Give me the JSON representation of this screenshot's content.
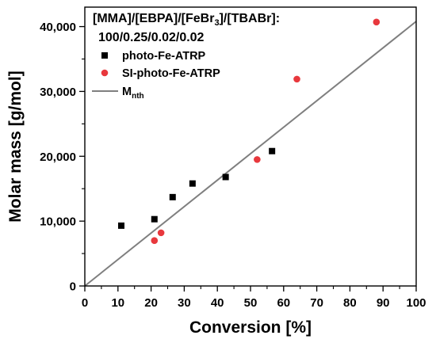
{
  "chart_data": {
    "type": "scatter",
    "xlabel": "Conversion [%]",
    "ylabel": "Molar mass [g/mol]",
    "xlim": [
      0,
      100
    ],
    "ylim": [
      0,
      43000
    ],
    "x_ticks": [
      0,
      10,
      20,
      30,
      40,
      50,
      60,
      70,
      80,
      90,
      100
    ],
    "x_tick_labels": [
      "0",
      "10",
      "20",
      "30",
      "40",
      "50",
      "60",
      "70",
      "80",
      "90",
      "100"
    ],
    "y_ticks": [
      0,
      10000,
      20000,
      30000,
      40000
    ],
    "y_tick_labels": [
      "0",
      "10,000",
      "20,000",
      "30,000",
      "40,000"
    ],
    "grid": false,
    "legend_position": "top-left",
    "annotation": {
      "line1_parts": [
        "[MMA]/[EBPA]/[FeBr",
        "3",
        "]/[TBABr]:"
      ],
      "line2": "100/0.25/0.02/0.02"
    },
    "series": [
      {
        "name": "photo-Fe-ATRP",
        "marker": "square",
        "color": "#000000",
        "x": [
          11,
          21,
          26.5,
          32.5,
          42.5,
          56.5
        ],
        "y": [
          9300,
          10300,
          13700,
          15800,
          16800,
          20800
        ]
      },
      {
        "name": "SI-photo-Fe-ATRP",
        "marker": "circle",
        "color": "#e8383d",
        "x": [
          21,
          23,
          52,
          64,
          88
        ],
        "y": [
          7000,
          8200,
          19500,
          31900,
          40700
        ]
      },
      {
        "name_parts": [
          "M",
          "nth"
        ],
        "type": "line",
        "color": "#7f7f7f",
        "x": [
          0,
          100
        ],
        "y": [
          0,
          40800
        ]
      }
    ]
  }
}
